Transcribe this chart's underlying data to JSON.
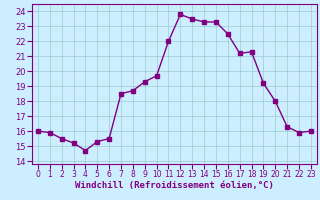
{
  "x": [
    0,
    1,
    2,
    3,
    4,
    5,
    6,
    7,
    8,
    9,
    10,
    11,
    12,
    13,
    14,
    15,
    16,
    17,
    18,
    19,
    20,
    21,
    22,
    23
  ],
  "y": [
    16.0,
    15.9,
    15.5,
    15.2,
    14.7,
    15.3,
    15.5,
    18.5,
    18.7,
    19.3,
    19.7,
    22.0,
    23.8,
    23.5,
    23.3,
    23.3,
    22.5,
    21.2,
    21.3,
    19.2,
    18.0,
    16.3,
    15.9,
    16.0
  ],
  "line_color": "#800080",
  "marker": "s",
  "marker_size": 2.2,
  "line_width": 1.0,
  "bg_color": "#cceeff",
  "grid_color": "#99cccc",
  "xlabel": "Windchill (Refroidissement éolien,°C)",
  "xlabel_fontsize": 6.5,
  "xlabel_color": "#800080",
  "ylabel_ticks": [
    14,
    15,
    16,
    17,
    18,
    19,
    20,
    21,
    22,
    23,
    24
  ],
  "xtick_labels": [
    "0",
    "1",
    "2",
    "3",
    "4",
    "5",
    "6",
    "7",
    "8",
    "9",
    "10",
    "11",
    "12",
    "13",
    "14",
    "15",
    "16",
    "17",
    "18",
    "19",
    "20",
    "21",
    "22",
    "23"
  ],
  "ylim": [
    13.8,
    24.5
  ],
  "xlim": [
    -0.5,
    23.5
  ],
  "tick_color": "#800080",
  "ytick_fontsize": 6.0,
  "xtick_fontsize": 5.5
}
